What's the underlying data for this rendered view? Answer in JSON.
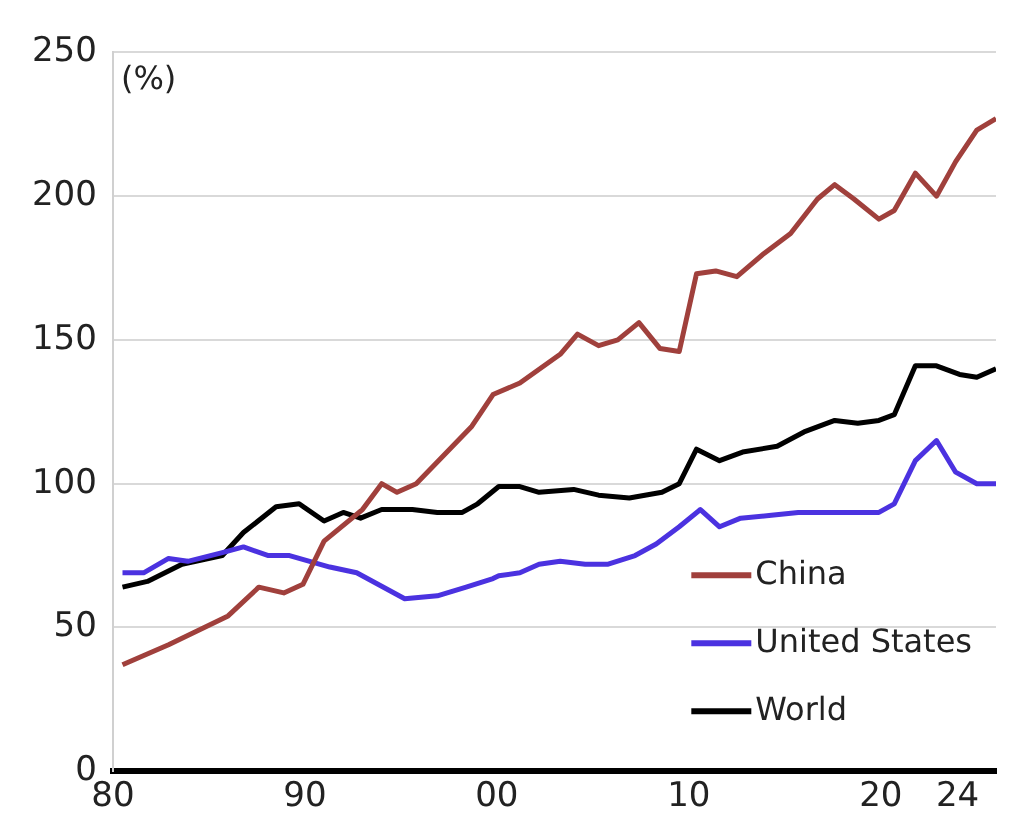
{
  "chart_data": {
    "type": "line",
    "ylabel": "(%)",
    "xlim": [
      1980,
      2026
    ],
    "xticks": [
      {
        "value": 1980,
        "label": "80"
      },
      {
        "value": 1990,
        "label": "90"
      },
      {
        "value": 2000,
        "label": "00"
      },
      {
        "value": 2010,
        "label": "10"
      },
      {
        "value": 2020,
        "label": "20"
      },
      {
        "value": 2024,
        "label": "24"
      }
    ],
    "ylim": [
      0,
      250
    ],
    "yticks": [
      0,
      50,
      100,
      150,
      200,
      250
    ],
    "grid": "y",
    "legend": "bottom right",
    "marker": "none",
    "line_style": "solid",
    "series": [
      {
        "name": "China",
        "color": "#a0403c",
        "x": [
          1980.5,
          1982.9,
          1986,
          1987.6,
          1988.9,
          1989.9,
          1991,
          1993,
          1994,
          1994.8,
          1995.8,
          1998.7,
          1999.8,
          2001.2,
          2003.3,
          2004.2,
          2005.3,
          2006.3,
          2007.4,
          2008.5,
          2009.5,
          2010.4,
          2011.4,
          2012.5,
          2013.9,
          2015.3,
          2016.7,
          2017.6,
          2018.6,
          2019.9,
          2020.7,
          2021.8,
          2022.9,
          2023.9,
          2025,
          2026
        ],
        "values": [
          37,
          44,
          54,
          64,
          62,
          65,
          80,
          91,
          100,
          97,
          100,
          120,
          131,
          135,
          145,
          152,
          148,
          150,
          156,
          147,
          146,
          173,
          174,
          172,
          180,
          187,
          199,
          204,
          199,
          192,
          195,
          208,
          200,
          212,
          223,
          227
        ]
      },
      {
        "name": "United States",
        "color": "#4b32e0",
        "x": [
          1980.5,
          1981.6,
          1982.9,
          1983.9,
          1985.7,
          1986.8,
          1988.1,
          1989.2,
          1991.3,
          1992.7,
          1995.2,
          1996.9,
          1998.4,
          1999.8,
          2000.1,
          2001.2,
          2002.2,
          2003.3,
          2004.6,
          2005.8,
          2007.2,
          2008.3,
          2009.5,
          2010.6,
          2011.6,
          2012.7,
          2014.3,
          2015.7,
          2017,
          2018.8,
          2019.9,
          2020.7,
          2021.8,
          2022.9,
          2023.9,
          2025,
          2026
        ],
        "values": [
          69,
          69,
          74,
          73,
          76,
          78,
          75,
          75,
          71,
          69,
          60,
          61,
          64,
          67,
          68,
          69,
          72,
          73,
          72,
          72,
          75,
          79,
          85,
          91,
          85,
          88,
          89,
          90,
          90,
          90,
          90,
          93,
          108,
          115,
          104,
          100,
          100
        ]
      },
      {
        "name": "World",
        "color": "#000000",
        "x": [
          1980.5,
          1981.8,
          1983.6,
          1985.7,
          1986.8,
          1988.5,
          1989.7,
          1991,
          1992,
          1992.9,
          1994,
          1995.6,
          1996.9,
          1998.2,
          1999,
          2000.1,
          2001.2,
          2002.2,
          2004,
          2005.3,
          2006.9,
          2008.6,
          2009.5,
          2010.4,
          2011.6,
          2012.8,
          2014.6,
          2016,
          2017.6,
          2018.8,
          2019.9,
          2020.7,
          2021.8,
          2022.9,
          2024.1,
          2025,
          2026
        ],
        "values": [
          64,
          66,
          72,
          75,
          83,
          92,
          93,
          87,
          90,
          88,
          91,
          91,
          90,
          90,
          93,
          99,
          99,
          97,
          98,
          96,
          95,
          97,
          100,
          112,
          108,
          111,
          113,
          118,
          122,
          121,
          122,
          124,
          141,
          141,
          138,
          137,
          140
        ]
      }
    ]
  }
}
